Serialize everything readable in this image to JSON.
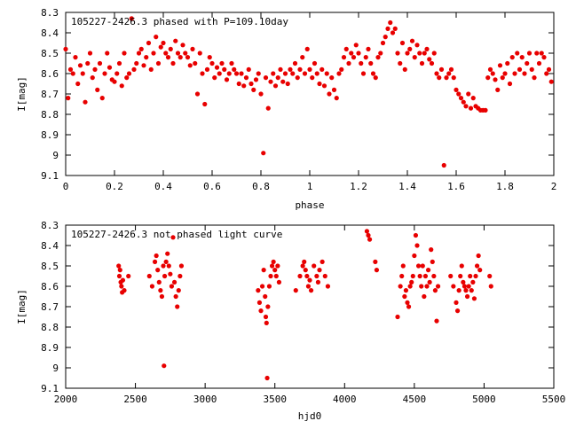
{
  "chart_data": [
    {
      "type": "scatter",
      "title": "105227-2426.3 phased with P=109.10day",
      "xlabel": "phase",
      "ylabel": "I[mag]",
      "xlim": [
        0,
        2
      ],
      "ylim": [
        8.3,
        9.1
      ],
      "y_inverted": true,
      "grid": false,
      "x_ticks": [
        "0",
        "0.2",
        "0.4",
        "0.6",
        "0.8",
        "1",
        "1.2",
        "1.4",
        "1.6",
        "1.8",
        "2"
      ],
      "y_ticks": [
        "8.3",
        "8.4",
        "8.5",
        "8.6",
        "8.7",
        "8.8",
        "8.9",
        "9",
        "9.1"
      ],
      "marker_color": "#e80000",
      "points": [
        [
          0.0,
          8.48
        ],
        [
          0.01,
          8.72
        ],
        [
          0.02,
          8.58
        ],
        [
          0.03,
          8.6
        ],
        [
          0.04,
          8.52
        ],
        [
          0.05,
          8.65
        ],
        [
          0.06,
          8.56
        ],
        [
          0.07,
          8.6
        ],
        [
          0.08,
          8.74
        ],
        [
          0.09,
          8.55
        ],
        [
          0.1,
          8.5
        ],
        [
          0.11,
          8.62
        ],
        [
          0.12,
          8.58
        ],
        [
          0.13,
          8.68
        ],
        [
          0.14,
          8.55
        ],
        [
          0.15,
          8.72
        ],
        [
          0.16,
          8.6
        ],
        [
          0.17,
          8.5
        ],
        [
          0.18,
          8.57
        ],
        [
          0.19,
          8.63
        ],
        [
          0.2,
          8.64
        ],
        [
          0.21,
          8.6
        ],
        [
          0.22,
          8.55
        ],
        [
          0.23,
          8.66
        ],
        [
          0.24,
          8.5
        ],
        [
          0.25,
          8.62
        ],
        [
          0.26,
          8.6
        ],
        [
          0.27,
          8.33
        ],
        [
          0.28,
          8.58
        ],
        [
          0.29,
          8.55
        ],
        [
          0.3,
          8.5
        ],
        [
          0.31,
          8.48
        ],
        [
          0.32,
          8.56
        ],
        [
          0.33,
          8.52
        ],
        [
          0.34,
          8.45
        ],
        [
          0.35,
          8.58
        ],
        [
          0.36,
          8.5
        ],
        [
          0.37,
          8.42
        ],
        [
          0.38,
          8.55
        ],
        [
          0.39,
          8.47
        ],
        [
          0.4,
          8.45
        ],
        [
          0.41,
          8.5
        ],
        [
          0.42,
          8.52
        ],
        [
          0.43,
          8.48
        ],
        [
          0.44,
          8.55
        ],
        [
          0.45,
          8.44
        ],
        [
          0.46,
          8.5
        ],
        [
          0.47,
          8.52
        ],
        [
          0.48,
          8.46
        ],
        [
          0.49,
          8.5
        ],
        [
          0.5,
          8.52
        ],
        [
          0.51,
          8.56
        ],
        [
          0.52,
          8.48
        ],
        [
          0.53,
          8.55
        ],
        [
          0.54,
          8.7
        ],
        [
          0.55,
          8.5
        ],
        [
          0.56,
          8.6
        ],
        [
          0.57,
          8.75
        ],
        [
          0.58,
          8.58
        ],
        [
          0.59,
          8.52
        ],
        [
          0.6,
          8.55
        ],
        [
          0.61,
          8.62
        ],
        [
          0.62,
          8.57
        ],
        [
          0.63,
          8.6
        ],
        [
          0.64,
          8.55
        ],
        [
          0.65,
          8.58
        ],
        [
          0.66,
          8.63
        ],
        [
          0.67,
          8.6
        ],
        [
          0.68,
          8.55
        ],
        [
          0.69,
          8.58
        ],
        [
          0.7,
          8.6
        ],
        [
          0.71,
          8.65
        ],
        [
          0.72,
          8.6
        ],
        [
          0.73,
          8.66
        ],
        [
          0.74,
          8.62
        ],
        [
          0.75,
          8.58
        ],
        [
          0.76,
          8.65
        ],
        [
          0.77,
          8.68
        ],
        [
          0.78,
          8.63
        ],
        [
          0.79,
          8.6
        ],
        [
          0.8,
          8.7
        ],
        [
          0.81,
          8.99
        ],
        [
          0.82,
          8.62
        ],
        [
          0.83,
          8.77
        ],
        [
          0.84,
          8.64
        ],
        [
          0.85,
          8.6
        ],
        [
          0.86,
          8.66
        ],
        [
          0.87,
          8.62
        ],
        [
          0.88,
          8.58
        ],
        [
          0.89,
          8.64
        ],
        [
          0.9,
          8.6
        ],
        [
          0.91,
          8.65
        ],
        [
          0.92,
          8.58
        ],
        [
          0.93,
          8.6
        ],
        [
          0.94,
          8.55
        ],
        [
          0.95,
          8.62
        ],
        [
          0.96,
          8.58
        ],
        [
          0.97,
          8.52
        ],
        [
          0.98,
          8.6
        ],
        [
          0.99,
          8.48
        ],
        [
          1.0,
          8.58
        ],
        [
          1.01,
          8.62
        ],
        [
          1.02,
          8.55
        ],
        [
          1.03,
          8.6
        ],
        [
          1.04,
          8.65
        ],
        [
          1.05,
          8.58
        ],
        [
          1.06,
          8.66
        ],
        [
          1.07,
          8.6
        ],
        [
          1.08,
          8.7
        ],
        [
          1.09,
          8.62
        ],
        [
          1.1,
          8.68
        ],
        [
          1.11,
          8.72
        ],
        [
          1.12,
          8.6
        ],
        [
          1.13,
          8.58
        ],
        [
          1.14,
          8.52
        ],
        [
          1.15,
          8.48
        ],
        [
          1.16,
          8.55
        ],
        [
          1.17,
          8.5
        ],
        [
          1.18,
          8.52
        ],
        [
          1.19,
          8.46
        ],
        [
          1.2,
          8.5
        ],
        [
          1.21,
          8.55
        ],
        [
          1.22,
          8.6
        ],
        [
          1.23,
          8.52
        ],
        [
          1.24,
          8.48
        ],
        [
          1.25,
          8.55
        ],
        [
          1.26,
          8.6
        ],
        [
          1.27,
          8.62
        ],
        [
          1.28,
          8.52
        ],
        [
          1.29,
          8.5
        ],
        [
          1.3,
          8.45
        ],
        [
          1.31,
          8.42
        ],
        [
          1.32,
          8.38
        ],
        [
          1.33,
          8.35
        ],
        [
          1.34,
          8.4
        ],
        [
          1.35,
          8.38
        ],
        [
          1.36,
          8.5
        ],
        [
          1.37,
          8.55
        ],
        [
          1.38,
          8.45
        ],
        [
          1.39,
          8.58
        ],
        [
          1.4,
          8.5
        ],
        [
          1.41,
          8.48
        ],
        [
          1.42,
          8.44
        ],
        [
          1.43,
          8.52
        ],
        [
          1.44,
          8.46
        ],
        [
          1.45,
          8.5
        ],
        [
          1.46,
          8.55
        ],
        [
          1.47,
          8.5
        ],
        [
          1.48,
          8.48
        ],
        [
          1.49,
          8.53
        ],
        [
          1.5,
          8.55
        ],
        [
          1.51,
          8.5
        ],
        [
          1.52,
          8.6
        ],
        [
          1.53,
          8.62
        ],
        [
          1.54,
          8.58
        ],
        [
          1.55,
          9.05
        ],
        [
          1.56,
          8.62
        ],
        [
          1.57,
          8.6
        ],
        [
          1.58,
          8.58
        ],
        [
          1.59,
          8.62
        ],
        [
          1.6,
          8.68
        ],
        [
          1.61,
          8.7
        ],
        [
          1.62,
          8.72
        ],
        [
          1.63,
          8.74
        ],
        [
          1.64,
          8.76
        ],
        [
          1.65,
          8.7
        ],
        [
          1.66,
          8.77
        ],
        [
          1.67,
          8.72
        ],
        [
          1.68,
          8.76
        ],
        [
          1.69,
          8.77
        ],
        [
          1.7,
          8.78
        ],
        [
          1.71,
          8.78
        ],
        [
          1.72,
          8.78
        ],
        [
          1.73,
          8.62
        ],
        [
          1.74,
          8.58
        ],
        [
          1.75,
          8.6
        ],
        [
          1.76,
          8.63
        ],
        [
          1.77,
          8.68
        ],
        [
          1.78,
          8.56
        ],
        [
          1.79,
          8.62
        ],
        [
          1.8,
          8.6
        ],
        [
          1.81,
          8.55
        ],
        [
          1.82,
          8.65
        ],
        [
          1.83,
          8.52
        ],
        [
          1.84,
          8.6
        ],
        [
          1.85,
          8.5
        ],
        [
          1.86,
          8.58
        ],
        [
          1.87,
          8.52
        ],
        [
          1.88,
          8.6
        ],
        [
          1.89,
          8.55
        ],
        [
          1.9,
          8.5
        ],
        [
          1.91,
          8.58
        ],
        [
          1.92,
          8.62
        ],
        [
          1.93,
          8.5
        ],
        [
          1.94,
          8.55
        ],
        [
          1.95,
          8.5
        ],
        [
          1.96,
          8.52
        ],
        [
          1.97,
          8.6
        ],
        [
          1.98,
          8.58
        ],
        [
          1.99,
          8.64
        ]
      ]
    },
    {
      "type": "scatter",
      "title": "105227-2426.3 not phased light curve",
      "xlabel": "hjd0",
      "ylabel": "I[mag]",
      "xlim": [
        2000,
        5500
      ],
      "ylim": [
        8.3,
        9.1
      ],
      "y_inverted": true,
      "grid": false,
      "x_ticks": [
        "2000",
        "2500",
        "3000",
        "3500",
        "4000",
        "4500",
        "5000",
        "5500"
      ],
      "y_ticks": [
        "8.3",
        "8.4",
        "8.5",
        "8.6",
        "8.7",
        "8.8",
        "8.9",
        "9",
        "9.1"
      ],
      "marker_color": "#e80000",
      "points": [
        [
          2380,
          8.5
        ],
        [
          2385,
          8.55
        ],
        [
          2390,
          8.52
        ],
        [
          2395,
          8.58
        ],
        [
          2400,
          8.6
        ],
        [
          2405,
          8.63
        ],
        [
          2410,
          8.57
        ],
        [
          2420,
          8.62
        ],
        [
          2450,
          8.55
        ],
        [
          2600,
          8.55
        ],
        [
          2620,
          8.6
        ],
        [
          2640,
          8.48
        ],
        [
          2650,
          8.45
        ],
        [
          2660,
          8.52
        ],
        [
          2670,
          8.58
        ],
        [
          2680,
          8.62
        ],
        [
          2690,
          8.65
        ],
        [
          2700,
          8.5
        ],
        [
          2705,
          8.99
        ],
        [
          2710,
          8.55
        ],
        [
          2720,
          8.48
        ],
        [
          2730,
          8.44
        ],
        [
          2740,
          8.5
        ],
        [
          2750,
          8.54
        ],
        [
          2760,
          8.6
        ],
        [
          2770,
          8.36
        ],
        [
          2780,
          8.58
        ],
        [
          2790,
          8.65
        ],
        [
          2800,
          8.7
        ],
        [
          2810,
          8.62
        ],
        [
          2820,
          8.55
        ],
        [
          2830,
          8.5
        ],
        [
          3380,
          8.62
        ],
        [
          3390,
          8.68
        ],
        [
          3400,
          8.72
        ],
        [
          3410,
          8.6
        ],
        [
          3420,
          8.52
        ],
        [
          3430,
          8.65
        ],
        [
          3435,
          8.75
        ],
        [
          3440,
          8.78
        ],
        [
          3445,
          9.05
        ],
        [
          3450,
          8.7
        ],
        [
          3460,
          8.6
        ],
        [
          3470,
          8.55
        ],
        [
          3480,
          8.5
        ],
        [
          3490,
          8.48
        ],
        [
          3500,
          8.52
        ],
        [
          3510,
          8.55
        ],
        [
          3520,
          8.5
        ],
        [
          3530,
          8.58
        ],
        [
          3650,
          8.62
        ],
        [
          3680,
          8.55
        ],
        [
          3700,
          8.5
        ],
        [
          3710,
          8.48
        ],
        [
          3720,
          8.52
        ],
        [
          3730,
          8.55
        ],
        [
          3740,
          8.6
        ],
        [
          3750,
          8.57
        ],
        [
          3760,
          8.62
        ],
        [
          3780,
          8.5
        ],
        [
          3800,
          8.55
        ],
        [
          3810,
          8.58
        ],
        [
          3820,
          8.52
        ],
        [
          3840,
          8.48
        ],
        [
          3860,
          8.55
        ],
        [
          3880,
          8.6
        ],
        [
          4160,
          8.33
        ],
        [
          4170,
          8.35
        ],
        [
          4180,
          8.37
        ],
        [
          4220,
          8.48
        ],
        [
          4230,
          8.52
        ],
        [
          4380,
          8.75
        ],
        [
          4400,
          8.6
        ],
        [
          4410,
          8.55
        ],
        [
          4420,
          8.5
        ],
        [
          4430,
          8.65
        ],
        [
          4440,
          8.62
        ],
        [
          4450,
          8.68
        ],
        [
          4460,
          8.7
        ],
        [
          4470,
          8.6
        ],
        [
          4480,
          8.58
        ],
        [
          4490,
          8.55
        ],
        [
          4500,
          8.45
        ],
        [
          4510,
          8.35
        ],
        [
          4520,
          8.4
        ],
        [
          4530,
          8.5
        ],
        [
          4540,
          8.55
        ],
        [
          4550,
          8.6
        ],
        [
          4560,
          8.5
        ],
        [
          4570,
          8.65
        ],
        [
          4580,
          8.55
        ],
        [
          4590,
          8.6
        ],
        [
          4600,
          8.52
        ],
        [
          4610,
          8.58
        ],
        [
          4620,
          8.42
        ],
        [
          4630,
          8.48
        ],
        [
          4640,
          8.55
        ],
        [
          4650,
          8.62
        ],
        [
          4660,
          8.77
        ],
        [
          4670,
          8.6
        ],
        [
          4760,
          8.55
        ],
        [
          4780,
          8.6
        ],
        [
          4800,
          8.68
        ],
        [
          4810,
          8.72
        ],
        [
          4820,
          8.62
        ],
        [
          4830,
          8.55
        ],
        [
          4840,
          8.5
        ],
        [
          4850,
          8.58
        ],
        [
          4860,
          8.6
        ],
        [
          4870,
          8.62
        ],
        [
          4880,
          8.65
        ],
        [
          4890,
          8.6
        ],
        [
          4900,
          8.55
        ],
        [
          4910,
          8.62
        ],
        [
          4920,
          8.58
        ],
        [
          4930,
          8.66
        ],
        [
          4940,
          8.55
        ],
        [
          4950,
          8.5
        ],
        [
          4960,
          8.45
        ],
        [
          4970,
          8.52
        ],
        [
          5040,
          8.55
        ],
        [
          5050,
          8.6
        ]
      ]
    }
  ]
}
